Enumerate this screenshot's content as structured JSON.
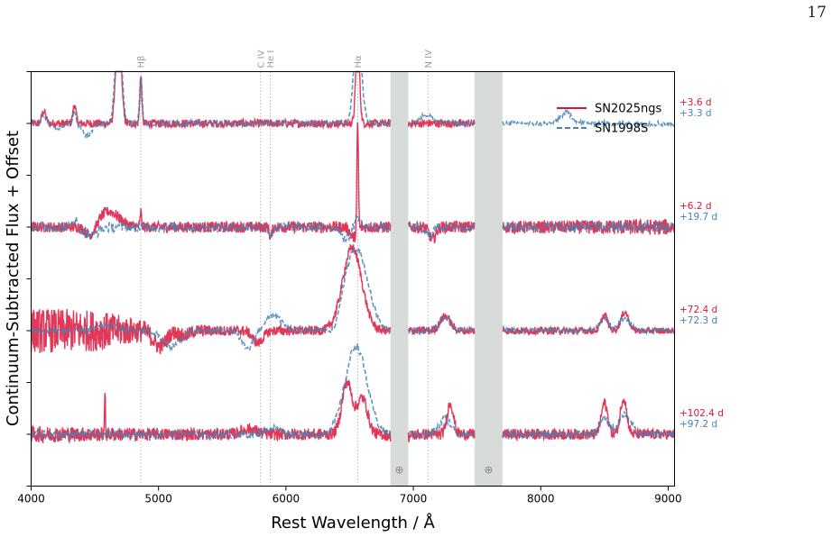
{
  "page_number": "17",
  "chart_data": {
    "type": "line",
    "title": "",
    "xlabel": "Rest Wavelength / Å",
    "ylabel": "Continuum-Subtracted Flux + Offset",
    "xlim": [
      4000,
      9050
    ],
    "x_ticks": [
      4000,
      5000,
      6000,
      7000,
      8000,
      9000
    ],
    "ylim": [
      -0.5,
      3.5
    ],
    "y_ticks_labeled": false,
    "grid": false,
    "legend_position": "top-right",
    "series": [
      {
        "name": "SN2025ngs",
        "color": "#dc143c",
        "style": "solid"
      },
      {
        "name": "SN1998S",
        "color": "#4682b4",
        "style": "dashed"
      }
    ],
    "telluric_bands": [
      [
        6820,
        6960
      ],
      [
        7480,
        7700
      ]
    ],
    "telluric_symbol": "⊕",
    "line_markers": [
      {
        "label": "Hβ",
        "wavelength": 4861
      },
      {
        "label": "C IV",
        "wavelength": 5801
      },
      {
        "label": "He I",
        "wavelength": 5876
      },
      {
        "label": "Hα",
        "wavelength": 6563
      },
      {
        "label": "N IV",
        "wavelength": 7115
      }
    ],
    "epochs": [
      {
        "offset": 3,
        "sn2025ngs": "+3.6 d",
        "sn1998s": "+3.3 d"
      },
      {
        "offset": 2,
        "sn2025ngs": "+6.2 d",
        "sn1998s": "+19.7 d"
      },
      {
        "offset": 1,
        "sn2025ngs": "+72.4 d",
        "sn1998s": "+72.3 d"
      },
      {
        "offset": 0,
        "sn2025ngs": "+102.4 d",
        "sn1998s": "+97.2 d"
      }
    ],
    "spectra": {
      "sn2025ngs": [
        {
          "offset": 3,
          "xmax": 7480,
          "features": [
            [
              4100,
              0.12,
              15
            ],
            [
              4340,
              0.18,
              12
            ],
            [
              4686,
              1.1,
              20
            ],
            [
              4861,
              0.45,
              8
            ],
            [
              6563,
              0.8,
              15
            ]
          ],
          "noise": [
            [
              4000,
              0.04
            ],
            [
              9050,
              0.04
            ]
          ]
        },
        {
          "offset": 2,
          "xmax": 9050,
          "features": [
            [
              4470,
              -0.1,
              40
            ],
            [
              4610,
              0.15,
              80
            ],
            [
              4861,
              0.15,
              5
            ],
            [
              5880,
              -0.1,
              10
            ],
            [
              6563,
              1.05,
              6
            ],
            [
              6530,
              -0.1,
              25
            ],
            [
              7150,
              -0.12,
              25
            ]
          ],
          "noise": [
            [
              4000,
              0.05
            ],
            [
              8000,
              0.06
            ],
            [
              9050,
              0.08
            ]
          ]
        },
        {
          "offset": 1,
          "xmax": 9050,
          "features": [
            [
              5010,
              -0.15,
              50
            ],
            [
              5200,
              -0.05,
              40
            ],
            [
              5780,
              -0.12,
              40
            ],
            [
              6520,
              0.8,
              75
            ],
            [
              7250,
              0.14,
              40
            ],
            [
              8500,
              0.15,
              25
            ],
            [
              8660,
              0.18,
              30
            ]
          ],
          "noise": [
            [
              4000,
              0.22
            ],
            [
              4500,
              0.2
            ],
            [
              5000,
              0.08
            ],
            [
              5500,
              0.05
            ],
            [
              9050,
              0.03
            ]
          ]
        },
        {
          "offset": 0,
          "xmax": 9050,
          "features": [
            [
              4580,
              0.45,
              3
            ],
            [
              5710,
              0.05,
              60
            ],
            [
              6480,
              0.5,
              40
            ],
            [
              6600,
              0.35,
              40
            ],
            [
              6900,
              -0.06,
              50
            ],
            [
              7290,
              0.3,
              25
            ],
            [
              8500,
              0.3,
              25
            ],
            [
              8650,
              0.35,
              25
            ]
          ],
          "noise": [
            [
              4000,
              0.08
            ],
            [
              5000,
              0.06
            ],
            [
              9050,
              0.05
            ]
          ]
        }
      ],
      "sn1998s": [
        {
          "offset": 3,
          "xmax": 9050,
          "features": [
            [
              4100,
              0.08,
              20
            ],
            [
              4200,
              -0.05,
              40
            ],
            [
              4340,
              0.12,
              12
            ],
            [
              4440,
              -0.12,
              35
            ],
            [
              4686,
              0.95,
              25
            ],
            [
              4861,
              0.45,
              10
            ],
            [
              6563,
              0.9,
              30
            ],
            [
              7100,
              0.08,
              50
            ],
            [
              8200,
              0.1,
              50
            ]
          ],
          "noise": [
            [
              4000,
              0.02
            ],
            [
              9050,
              0.025
            ]
          ]
        },
        {
          "offset": 2,
          "xmax": 9050,
          "features": [
            [
              4340,
              0.1,
              15
            ],
            [
              4470,
              -0.08,
              50
            ],
            [
              5880,
              -0.1,
              10
            ],
            [
              6563,
              0.1,
              20
            ],
            [
              6470,
              -0.12,
              30
            ],
            [
              7120,
              -0.08,
              30
            ]
          ],
          "noise": [
            [
              4000,
              0.05
            ],
            [
              7000,
              0.04
            ],
            [
              8000,
              0.05
            ],
            [
              9050,
              0.06
            ]
          ]
        },
        {
          "offset": 1,
          "xmax": 9050,
          "features": [
            [
              4600,
              0.05,
              80
            ],
            [
              5100,
              -0.15,
              70
            ],
            [
              5900,
              0.15,
              60
            ],
            [
              5700,
              -0.18,
              45
            ],
            [
              6550,
              0.8,
              90
            ],
            [
              6380,
              -0.1,
              30
            ],
            [
              7250,
              0.12,
              45
            ],
            [
              7600,
              0.08,
              60
            ],
            [
              8500,
              0.1,
              40
            ],
            [
              8660,
              0.12,
              40
            ]
          ],
          "noise": [
            [
              4000,
              0.03
            ],
            [
              9050,
              0.025
            ]
          ]
        },
        {
          "offset": 0,
          "xmax": 9050,
          "features": [
            [
              5900,
              0.06,
              60
            ],
            [
              6550,
              0.85,
              85
            ],
            [
              7250,
              0.15,
              45
            ],
            [
              8500,
              0.15,
              40
            ],
            [
              8660,
              0.2,
              45
            ]
          ],
          "noise": [
            [
              4000,
              0.04
            ],
            [
              9050,
              0.035
            ]
          ]
        }
      ]
    }
  }
}
